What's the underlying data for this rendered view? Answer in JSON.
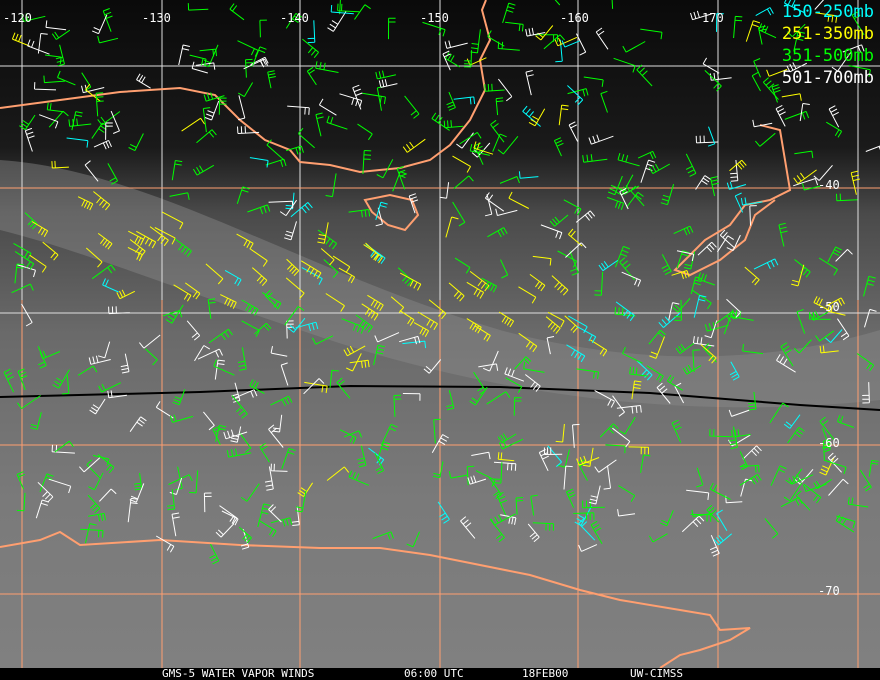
{
  "colors": {
    "high": "#00ffff",
    "upper": "#ffff00",
    "mid": "#00ff00",
    "low": "#ffffff",
    "coast": "#ff9f70",
    "grid_orange": "#ff9f70",
    "grid_white": "#e0e0e0"
  },
  "legend": [
    {
      "label": "150-250mb",
      "color": "#00ffff"
    },
    {
      "label": "251-350mb",
      "color": "#ffff00"
    },
    {
      "label": "351-500mb",
      "color": "#00ff00"
    },
    {
      "label": "501-700mb",
      "color": "#ffffff"
    }
  ],
  "longitude_labels": [
    "-120",
    "-130",
    "-140",
    "-150",
    "-160",
    "170"
  ],
  "latitude_labels": [
    "-40",
    "-50",
    "-60",
    "-70"
  ],
  "footer": {
    "product": "GMS-5 WATER VAPOR WINDS",
    "time": "06:00 UTC",
    "date": "18FEB00",
    "source": "UW-CIMSS"
  }
}
